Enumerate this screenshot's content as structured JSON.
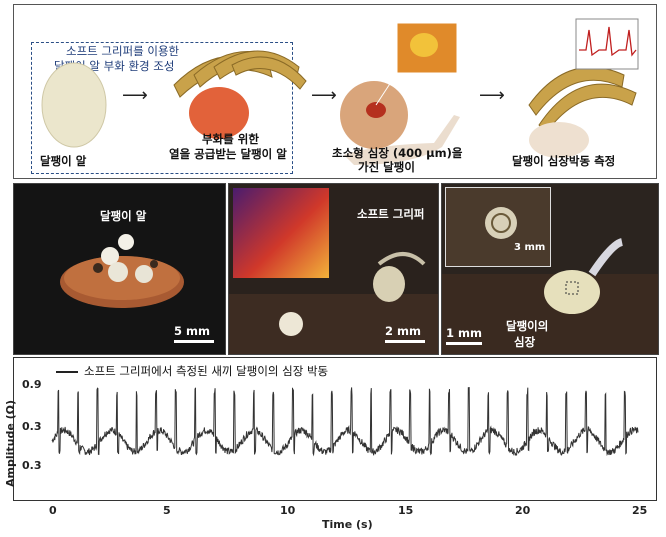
{
  "top_panel": {
    "dashed_caption_line1": "소프트 그리퍼를 이용한",
    "dashed_caption_line2": "달팽이 알 부화 환경 조성",
    "step1_label": "달팽이 알",
    "step2_line1": "부화를 위한",
    "step2_line2": "열을 공급받는 달팽이 알",
    "step3_line1": "초소형 심장 (400 μm)을",
    "step3_line2": "가진 달팽이",
    "step4_label": "달팽이 심장박동 측정"
  },
  "photos": {
    "p1": {
      "label": "달팽이 알",
      "scale": "5 mm"
    },
    "p2": {
      "label": "소프트 그리퍼",
      "scale": "2 mm"
    },
    "p3": {
      "inset_scale": "3 mm",
      "label_line1": "달팽이의",
      "label_line2": "심장",
      "scale": "1 mm"
    }
  },
  "colors": {
    "egg": "#ebe6cc",
    "gripper_gold": "#c9a24a",
    "heat_red": "#d8452a",
    "dashed_border": "#2b4f86",
    "trace": "#333333"
  },
  "chart_data": {
    "type": "line",
    "title": "",
    "legend": "소프트 그리퍼에서 측정된 새끼 달팽이의 심장 박동",
    "legend_position": "top-left",
    "xlabel": "Time (s)",
    "ylabel": "Amplitude (Ω)",
    "xlim": [
      0,
      25
    ],
    "x_ticks": [
      "0",
      "5",
      "10",
      "15",
      "20",
      "25"
    ],
    "y_ticks": [
      "0.9",
      "0.3",
      "0.3"
    ],
    "beats_per_second": 1.2,
    "baseline": 0.3,
    "peak": 0.85
  }
}
